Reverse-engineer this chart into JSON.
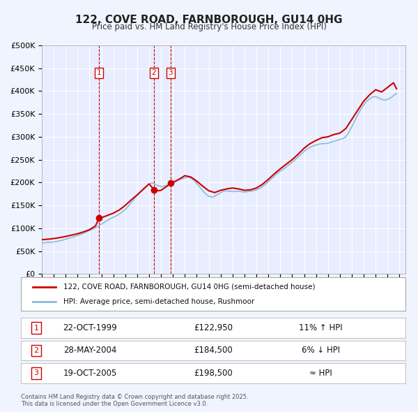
{
  "title": "122, COVE ROAD, FARNBOROUGH, GU14 0HG",
  "subtitle": "Price paid vs. HM Land Registry's House Price Index (HPI)",
  "ylabel_ticks": [
    "£0",
    "£50K",
    "£100K",
    "£150K",
    "£200K",
    "£250K",
    "£300K",
    "£350K",
    "£400K",
    "£450K",
    "£500K"
  ],
  "ytick_vals": [
    0,
    50000,
    100000,
    150000,
    200000,
    250000,
    300000,
    350000,
    400000,
    450000,
    500000
  ],
  "ylim": [
    0,
    500000
  ],
  "xlim_start": 1995.0,
  "xlim_end": 2025.5,
  "background_color": "#f0f4ff",
  "plot_bg_color": "#e8eeff",
  "grid_color": "#ffffff",
  "sale_line_color": "#cc0000",
  "hpi_line_color": "#88bbdd",
  "sale_marker_color": "#cc0000",
  "vline_color": "#cc0000",
  "legend_label_sale": "122, COVE ROAD, FARNBOROUGH, GU14 0HG (semi-detached house)",
  "legend_label_hpi": "HPI: Average price, semi-detached house, Rushmoor",
  "sales": [
    {
      "year": 1999.81,
      "price": 122950,
      "label": "1"
    },
    {
      "year": 2004.41,
      "price": 184500,
      "label": "2"
    },
    {
      "year": 2005.8,
      "price": 198500,
      "label": "3"
    }
  ],
  "table_rows": [
    {
      "num": "1",
      "date": "22-OCT-1999",
      "price": "£122,950",
      "hpi": "11% ↑ HPI"
    },
    {
      "num": "2",
      "date": "28-MAY-2004",
      "price": "£184,500",
      "hpi": "6% ↓ HPI"
    },
    {
      "num": "3",
      "date": "19-OCT-2005",
      "price": "£198,500",
      "hpi": "≈ HPI"
    }
  ],
  "footer": "Contains HM Land Registry data © Crown copyright and database right 2025.\nThis data is licensed under the Open Government Licence v3.0.",
  "hpi_data": {
    "years": [
      1995.0,
      1995.25,
      1995.5,
      1995.75,
      1996.0,
      1996.25,
      1996.5,
      1996.75,
      1997.0,
      1997.25,
      1997.5,
      1997.75,
      1998.0,
      1998.25,
      1998.5,
      1998.75,
      1999.0,
      1999.25,
      1999.5,
      1999.75,
      2000.0,
      2000.25,
      2000.5,
      2000.75,
      2001.0,
      2001.25,
      2001.5,
      2001.75,
      2002.0,
      2002.25,
      2002.5,
      2002.75,
      2003.0,
      2003.25,
      2003.5,
      2003.75,
      2004.0,
      2004.25,
      2004.5,
      2004.75,
      2005.0,
      2005.25,
      2005.5,
      2005.75,
      2006.0,
      2006.25,
      2006.5,
      2006.75,
      2007.0,
      2007.25,
      2007.5,
      2007.75,
      2008.0,
      2008.25,
      2008.5,
      2008.75,
      2009.0,
      2009.25,
      2009.5,
      2009.75,
      2010.0,
      2010.25,
      2010.5,
      2010.75,
      2011.0,
      2011.25,
      2011.5,
      2011.75,
      2012.0,
      2012.25,
      2012.5,
      2012.75,
      2013.0,
      2013.25,
      2013.5,
      2013.75,
      2014.0,
      2014.25,
      2014.5,
      2014.75,
      2015.0,
      2015.25,
      2015.5,
      2015.75,
      2016.0,
      2016.25,
      2016.5,
      2016.75,
      2017.0,
      2017.25,
      2017.5,
      2017.75,
      2018.0,
      2018.25,
      2018.5,
      2018.75,
      2019.0,
      2019.25,
      2019.5,
      2019.75,
      2020.0,
      2020.25,
      2020.5,
      2020.75,
      2021.0,
      2021.25,
      2021.5,
      2021.75,
      2022.0,
      2022.25,
      2022.5,
      2022.75,
      2023.0,
      2023.25,
      2023.5,
      2023.75,
      2024.0,
      2024.25,
      2024.5,
      2024.75
    ],
    "values": [
      68000,
      68500,
      69000,
      69500,
      70000,
      71000,
      72500,
      74000,
      76000,
      78000,
      80000,
      82000,
      84000,
      86500,
      89000,
      92000,
      95000,
      98000,
      101000,
      105000,
      109000,
      113000,
      117000,
      121000,
      124000,
      127000,
      131000,
      136000,
      141000,
      148000,
      156000,
      164000,
      172000,
      179000,
      186000,
      192000,
      197000,
      199000,
      196000,
      193000,
      191000,
      192000,
      194000,
      197000,
      200000,
      203000,
      206000,
      208000,
      210000,
      212000,
      210000,
      205000,
      198000,
      190000,
      182000,
      175000,
      170000,
      168000,
      170000,
      174000,
      178000,
      181000,
      182000,
      181000,
      180000,
      181000,
      181000,
      180000,
      179000,
      180000,
      181000,
      182000,
      184000,
      187000,
      191000,
      196000,
      202000,
      208000,
      214000,
      220000,
      225000,
      229000,
      234000,
      239000,
      244000,
      250000,
      256000,
      262000,
      268000,
      273000,
      277000,
      280000,
      282000,
      284000,
      285000,
      285000,
      286000,
      288000,
      290000,
      292000,
      294000,
      296000,
      300000,
      310000,
      322000,
      335000,
      348000,
      360000,
      370000,
      378000,
      383000,
      387000,
      388000,
      385000,
      382000,
      380000,
      382000,
      385000,
      390000,
      395000
    ]
  },
  "sale_line_data": {
    "years": [
      1995.0,
      1995.5,
      1996.0,
      1996.5,
      1997.0,
      1997.5,
      1998.0,
      1998.5,
      1999.0,
      1999.5,
      1999.81,
      2000.0,
      2000.5,
      2001.0,
      2001.5,
      2002.0,
      2002.5,
      2003.0,
      2003.5,
      2004.0,
      2004.41,
      2004.5,
      2004.75,
      2005.0,
      2005.5,
      2005.8,
      2006.0,
      2006.5,
      2007.0,
      2007.5,
      2008.0,
      2008.5,
      2009.0,
      2009.5,
      2010.0,
      2010.5,
      2011.0,
      2011.5,
      2012.0,
      2012.5,
      2013.0,
      2013.5,
      2014.0,
      2014.5,
      2015.0,
      2015.5,
      2016.0,
      2016.5,
      2017.0,
      2017.5,
      2018.0,
      2018.5,
      2019.0,
      2019.5,
      2020.0,
      2020.5,
      2021.0,
      2021.5,
      2022.0,
      2022.5,
      2023.0,
      2023.5,
      2024.0,
      2024.5,
      2024.75
    ],
    "values": [
      75000,
      76000,
      77500,
      79500,
      82000,
      85000,
      88000,
      92000,
      97000,
      105000,
      122950,
      122950,
      128000,
      133000,
      140000,
      150000,
      162000,
      173000,
      185000,
      197000,
      184500,
      184500,
      182000,
      183000,
      192000,
      198500,
      200000,
      207000,
      215000,
      212000,
      203000,
      192000,
      182000,
      178000,
      183000,
      186000,
      188000,
      186000,
      183000,
      184000,
      188000,
      196000,
      207000,
      219000,
      230000,
      240000,
      250000,
      262000,
      275000,
      285000,
      292000,
      298000,
      300000,
      305000,
      308000,
      318000,
      338000,
      358000,
      378000,
      392000,
      403000,
      398000,
      408000,
      418000,
      405000
    ]
  }
}
